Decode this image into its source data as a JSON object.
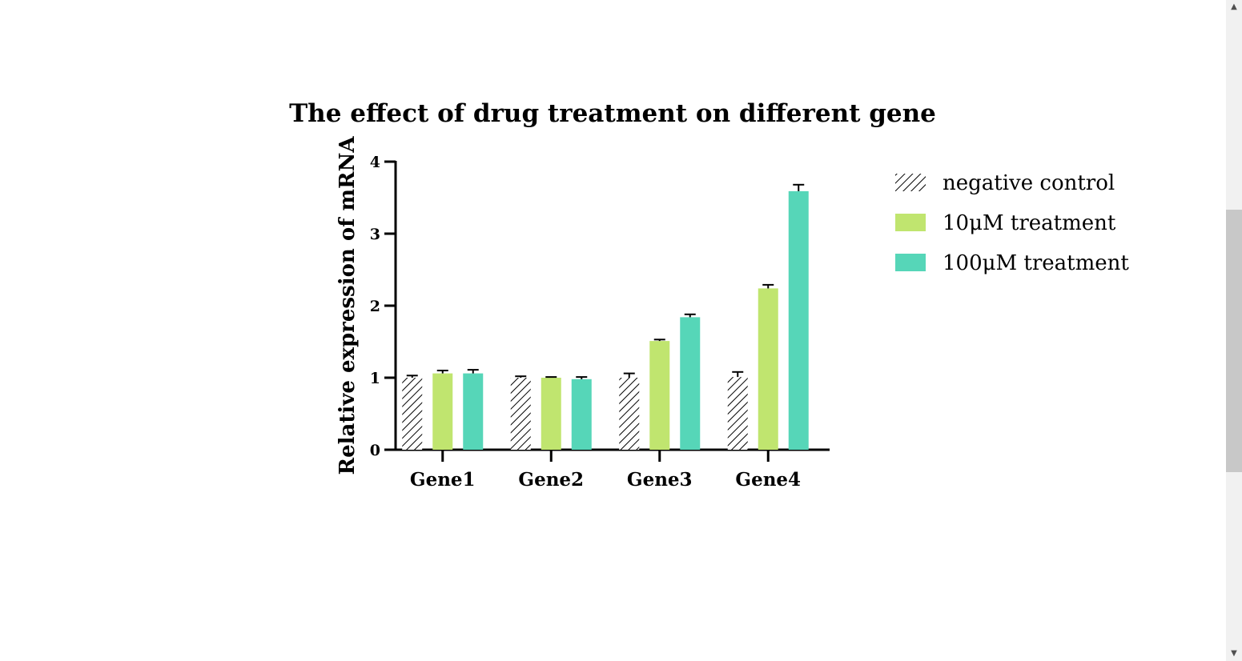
{
  "chart_data": {
    "type": "bar",
    "title": "The effect of drug treatment on different gene",
    "xlabel": "",
    "ylabel": "Relative expression of mRNA",
    "categories": [
      "Gene1",
      "Gene2",
      "Gene3",
      "Gene4"
    ],
    "ylim": [
      0,
      4
    ],
    "yticks": [
      "0",
      "1",
      "2",
      "3",
      "4"
    ],
    "grid": false,
    "legend_position": "right",
    "series": [
      {
        "name": "negative control",
        "pattern": "hatched",
        "color": "#000000",
        "values": [
          1.0,
          1.0,
          1.0,
          1.01
        ],
        "errors": [
          0.03,
          0.02,
          0.06,
          0.07
        ]
      },
      {
        "name": "10μM treatment",
        "pattern": "solid",
        "color": "#c0e56f",
        "values": [
          1.06,
          1.0,
          1.51,
          2.24
        ],
        "errors": [
          0.04,
          0.01,
          0.02,
          0.05
        ]
      },
      {
        "name": "100μM treatment",
        "pattern": "solid",
        "color": "#56d6b8",
        "values": [
          1.06,
          0.98,
          1.84,
          3.59
        ],
        "errors": [
          0.05,
          0.03,
          0.04,
          0.09
        ]
      }
    ]
  },
  "scrollbar": {
    "up_icon": "triangle-up-icon",
    "down_icon": "triangle-down-icon"
  }
}
